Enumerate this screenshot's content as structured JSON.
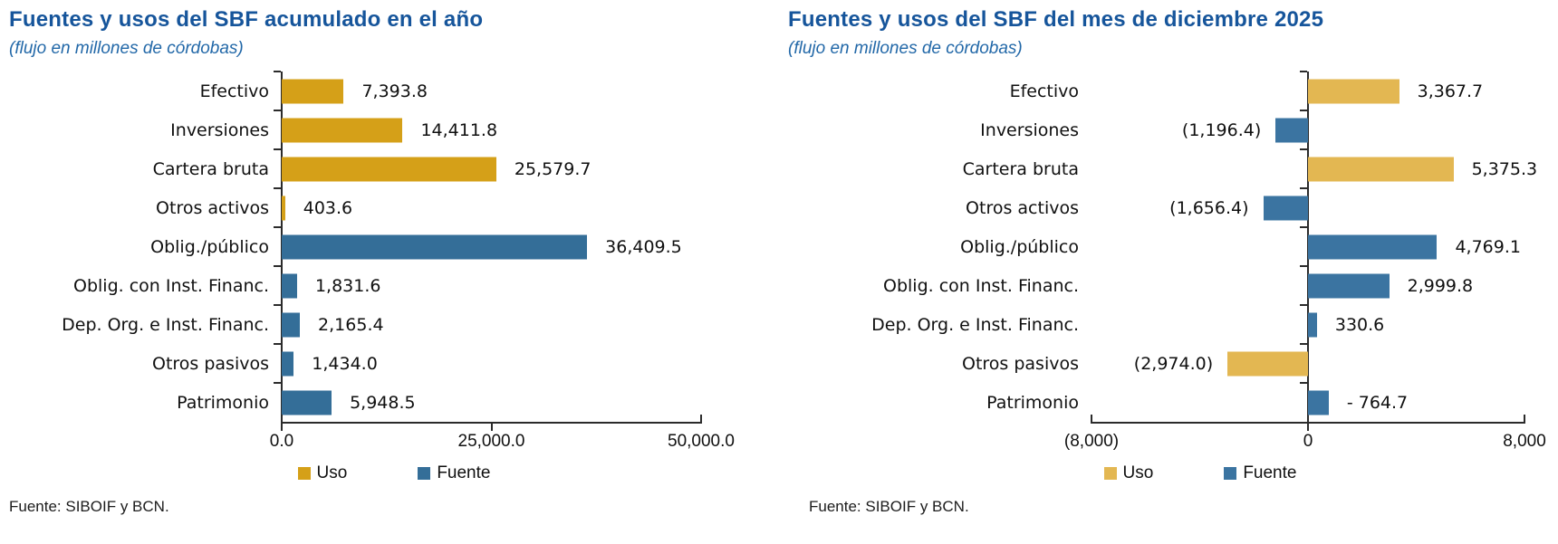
{
  "chart_data": [
    {
      "type": "bar",
      "orientation": "horizontal",
      "title": "Fuentes y usos del SBF acumulado en el año",
      "subtitle": "(flujo en millones de córdobas)",
      "source_note": "Fuente: SIBOIF y BCN.",
      "xlim": [
        0,
        50000
      ],
      "grid": false,
      "legend_position": "bottom",
      "x_ticks": [
        {
          "label": "0.0",
          "value": 0
        },
        {
          "label": "25,000.0",
          "value": 25000
        },
        {
          "label": "50,000.0",
          "value": 50000
        }
      ],
      "series_colors": {
        "Uso": "#D5A018",
        "Fuente": "#346E98"
      },
      "legend": [
        {
          "label": "Uso",
          "series": "Uso"
        },
        {
          "label": "Fuente",
          "series": "Fuente"
        }
      ],
      "categories": [
        "Efectivo",
        "Inversiones",
        "Cartera bruta",
        "Otros activos",
        "Oblig./público",
        "Oblig. con Inst. Financ.",
        "Dep. Org. e Inst. Financ.",
        "Otros pasivos",
        "Patrimonio"
      ],
      "bars": [
        {
          "category": "Efectivo",
          "value": 7393.8,
          "label": "7,393.8",
          "series": "Uso"
        },
        {
          "category": "Inversiones",
          "value": 14411.8,
          "label": "14,411.8",
          "series": "Uso"
        },
        {
          "category": "Cartera bruta",
          "value": 25579.7,
          "label": "25,579.7",
          "series": "Uso"
        },
        {
          "category": "Otros activos",
          "value": 403.6,
          "label": "403.6",
          "series": "Uso"
        },
        {
          "category": "Oblig./público",
          "value": 36409.5,
          "label": "36,409.5",
          "series": "Fuente"
        },
        {
          "category": "Oblig. con Inst. Financ.",
          "value": 1831.6,
          "label": "1,831.6",
          "series": "Fuente"
        },
        {
          "category": "Dep. Org. e Inst. Financ.",
          "value": 2165.4,
          "label": "2,165.4",
          "series": "Fuente"
        },
        {
          "category": "Otros pasivos",
          "value": 1434.0,
          "label": "1,434.0",
          "series": "Fuente"
        },
        {
          "category": "Patrimonio",
          "value": 5948.5,
          "label": "5,948.5",
          "series": "Fuente"
        }
      ]
    },
    {
      "type": "bar",
      "orientation": "horizontal",
      "title": "Fuentes y usos del SBF del mes de diciembre 2025",
      "subtitle": "(flujo en millones de córdobas)",
      "source_note": "Fuente: SIBOIF y BCN.",
      "xlim": [
        -8000,
        8000
      ],
      "grid": false,
      "legend_position": "bottom",
      "x_ticks": [
        {
          "label": "(8,000)",
          "value": -8000
        },
        {
          "label": "0",
          "value": 0
        },
        {
          "label": "8,000",
          "value": 8000
        }
      ],
      "series_colors": {
        "Uso": "#E3B752",
        "Fuente": "#3B74A1"
      },
      "legend": [
        {
          "label": "Uso",
          "series": "Uso"
        },
        {
          "label": "Fuente",
          "series": "Fuente"
        }
      ],
      "categories": [
        "Efectivo",
        "Inversiones",
        "Cartera bruta",
        "Otros activos",
        "Oblig./público",
        "Oblig. con Inst. Financ.",
        "Dep. Org. e Inst. Financ.",
        "Otros pasivos",
        "Patrimonio"
      ],
      "bars": [
        {
          "category": "Efectivo",
          "value": 3367.7,
          "label": "3,367.7",
          "series": "Uso"
        },
        {
          "category": "Inversiones",
          "value": -1196.4,
          "label": "(1,196.4)",
          "series": "Fuente"
        },
        {
          "category": "Cartera bruta",
          "value": 5375.3,
          "label": "5,375.3",
          "series": "Uso"
        },
        {
          "category": "Otros activos",
          "value": -1656.4,
          "label": "(1,656.4)",
          "series": "Fuente"
        },
        {
          "category": "Oblig./público",
          "value": 4769.1,
          "label": "4,769.1",
          "series": "Fuente"
        },
        {
          "category": "Oblig. con Inst. Financ.",
          "value": 2999.8,
          "label": "2,999.8",
          "series": "Fuente"
        },
        {
          "category": "Dep. Org. e Inst. Financ.",
          "value": 330.6,
          "label": "330.6",
          "series": "Fuente"
        },
        {
          "category": "Otros pasivos",
          "value": -2974.0,
          "label": "(2,974.0)",
          "series": "Uso"
        },
        {
          "category": "Patrimonio",
          "value": 764.7,
          "label": "- 764.7",
          "series": "Fuente"
        }
      ]
    }
  ]
}
